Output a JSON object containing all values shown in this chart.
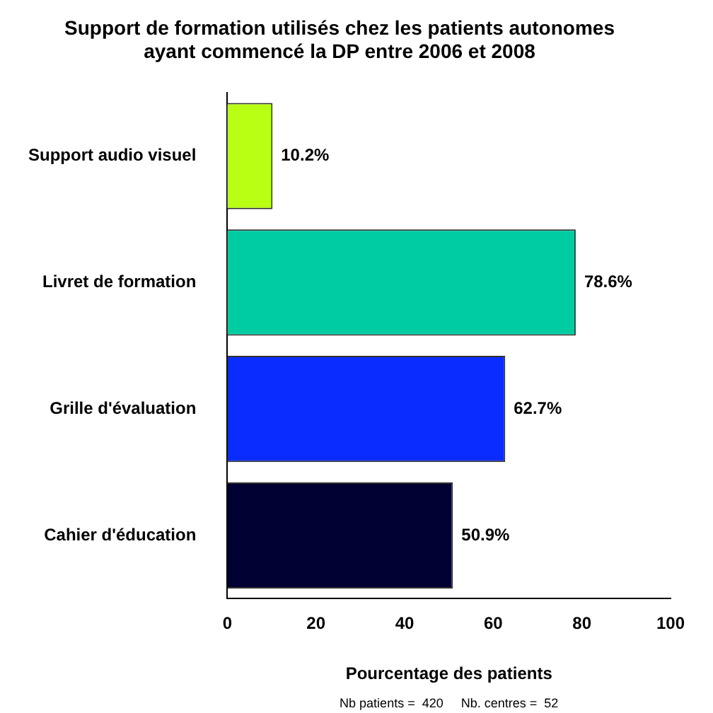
{
  "chart_data": {
    "type": "bar",
    "orientation": "horizontal",
    "title": "Support de formation utilisés chez les patients autonomes\nayant commencé la DP entre 2006 et 2008",
    "xlabel": "Pourcentage des patients",
    "categories": [
      "Support audio visuel",
      "Livret de formation",
      "Grille d'évaluation",
      "Cahier d'éducation"
    ],
    "values": [
      10.2,
      78.6,
      62.7,
      50.9
    ],
    "colors": [
      "#b8ff14",
      "#00cca2",
      "#0a2cff",
      "#000033"
    ],
    "value_labels": [
      "10.2%",
      "78.6%",
      "62.7%",
      "50.9%"
    ],
    "xlim": [
      0,
      100
    ],
    "xticks": [
      0,
      20,
      40,
      60,
      80,
      100
    ],
    "grid": false,
    "legend": false,
    "annotations": [
      "Nb patients =  420     Nb. centres =  52"
    ]
  }
}
